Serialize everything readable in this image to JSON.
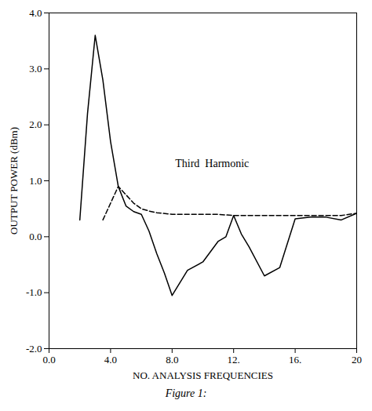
{
  "chart_data": {
    "type": "line",
    "xlabel": "NO. ANALYSIS FREQUENCIES",
    "ylabel": "OUTPUT POWER (dBm)",
    "caption": "Figure 1:",
    "xlim": [
      0.0,
      20.0
    ],
    "ylim": [
      -2.0,
      4.0
    ],
    "xticks": [
      {
        "value": 0.0,
        "label": "0.0"
      },
      {
        "value": 4.0,
        "label": "4.0"
      },
      {
        "value": 8.0,
        "label": "8.0"
      },
      {
        "value": 12.0,
        "label": "12."
      },
      {
        "value": 16.0,
        "label": "16."
      },
      20
    ],
    "yticks": [
      {
        "value": -2.0,
        "label": "-2.0"
      },
      {
        "value": -1.0,
        "label": "-1.0"
      },
      {
        "value": 0.0,
        "label": "0.0"
      },
      {
        "value": 1.0,
        "label": "1.0"
      },
      {
        "value": 2.0,
        "label": "2.0"
      },
      {
        "value": 3.0,
        "label": "3.0"
      },
      {
        "value": 4.0,
        "label": "4.0"
      }
    ],
    "grid": false,
    "annotations": [
      {
        "text": "Third  Harmonic",
        "x": 8.2,
        "y": 1.25
      }
    ],
    "series": [
      {
        "color": "#000000",
        "line_style": "solid",
        "x": [
          2.0,
          2.5,
          3.0,
          3.5,
          4.0,
          4.5,
          5.0,
          5.5,
          6.0,
          6.5,
          7.0,
          7.5,
          8.0,
          9.0,
          10.0,
          11.0,
          11.5,
          12.0,
          12.5,
          13.0,
          14.0,
          15.0,
          16.0,
          17.0,
          18.0,
          19.0,
          20.0
        ],
        "values": [
          0.3,
          2.2,
          3.6,
          2.8,
          1.7,
          0.9,
          0.55,
          0.45,
          0.4,
          0.1,
          -0.3,
          -0.65,
          -1.05,
          -0.6,
          -0.45,
          -0.08,
          0.0,
          0.38,
          0.05,
          -0.18,
          -0.7,
          -0.55,
          0.32,
          0.35,
          0.35,
          0.3,
          0.42
        ]
      },
      {
        "color": "#000000",
        "line_style": "dashed",
        "x": [
          3.5,
          4.0,
          4.5,
          5.0,
          5.5,
          6.0,
          6.5,
          7.0,
          8.0,
          9.0,
          10.0,
          11.0,
          12.0,
          13.0,
          14.0,
          15.0,
          16.0,
          17.0,
          18.0,
          19.0,
          20.0
        ],
        "values": [
          0.3,
          0.6,
          0.9,
          0.75,
          0.6,
          0.5,
          0.46,
          0.43,
          0.4,
          0.4,
          0.4,
          0.4,
          0.38,
          0.38,
          0.38,
          0.38,
          0.38,
          0.38,
          0.38,
          0.38,
          0.42
        ]
      }
    ]
  }
}
